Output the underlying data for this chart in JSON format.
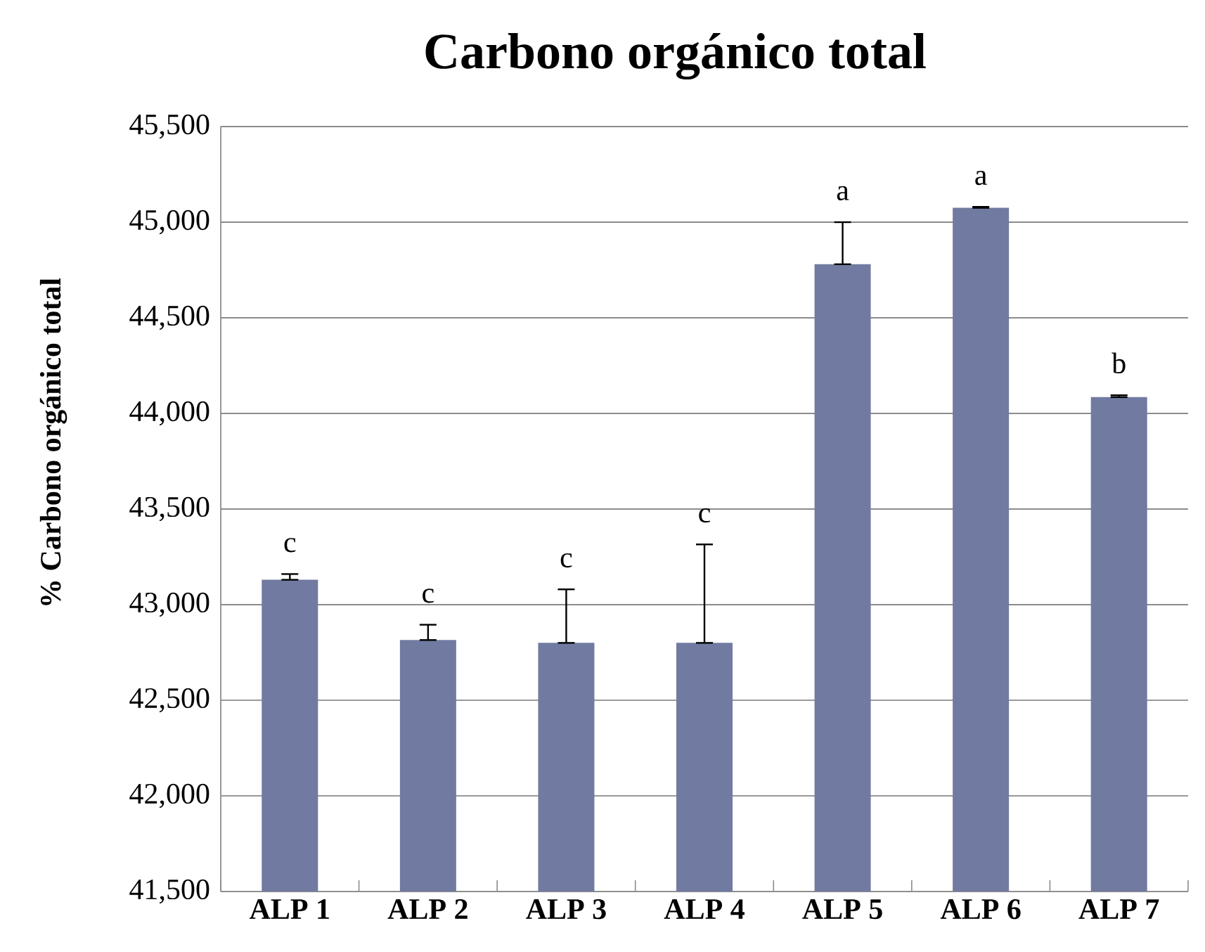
{
  "chart_data": {
    "type": "bar",
    "title": "Carbono orgánico total",
    "ylabel": "%  Carbono orgánico total",
    "categories": [
      "ALP 1",
      "ALP 2",
      "ALP 3",
      "ALP 4",
      "ALP 5",
      "ALP 6",
      "ALP 7"
    ],
    "values": [
      43130,
      42815,
      42800,
      42800,
      44780,
      45075,
      44085
    ],
    "errors": [
      [
        43130,
        43160
      ],
      [
        42815,
        42895
      ],
      [
        42800,
        43080
      ],
      [
        42800,
        43315
      ],
      [
        44780,
        45000
      ],
      [
        45075,
        45080
      ],
      [
        44085,
        44095
      ]
    ],
    "color": "#717ba1",
    "ylim": [
      41500,
      45500
    ],
    "yticks": [
      {
        "value": 41500,
        "label": "41,500"
      },
      {
        "value": 42000,
        "label": "42,000"
      },
      {
        "value": 42500,
        "label": "42,500"
      },
      {
        "value": 43000,
        "label": "43,000"
      },
      {
        "value": 43500,
        "label": "43,500"
      },
      {
        "value": 44000,
        "label": "44,000"
      },
      {
        "value": 44500,
        "label": "44,500"
      },
      {
        "value": 45000,
        "label": "45,000"
      },
      {
        "value": 45500,
        "label": "45,500"
      }
    ],
    "grid": "y",
    "annotations": [
      "c",
      "c",
      "c",
      "c",
      "a",
      "a",
      "b"
    ]
  }
}
